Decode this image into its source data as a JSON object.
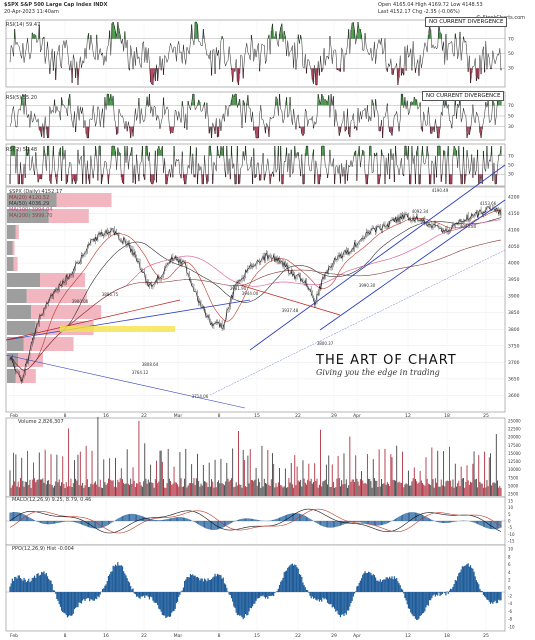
{
  "header": {
    "symbol": "$SPX",
    "name": "S&P 500 Large Cap Index",
    "exchange": "INDX",
    "date_line": "20-Apr-2023 11:40am",
    "open": "Open 4165.04",
    "high": "High 4169.72",
    "low": "Low 4148.53",
    "last": "Last 4152.17",
    "chg": "Chg -2.35 (-0.06%)",
    "source": "© StockCharts.com"
  },
  "annotations": {
    "rsi1_note": "NO CURRENT DIVERGENCE",
    "rsi2_note": "NO CURRENT DIVERGENCE"
  },
  "panels": {
    "rsi1_label": "RSI(14) 59.47",
    "rsi2_label": "RSI(5) 55.20",
    "rsi3_label": "RSI(2) 59.48",
    "price_label": "$SPX (Daily) 4152.17",
    "ma_labels": [
      "MA(20) 4120.52",
      "MA(50) 4036.29",
      "MA(100) 3994.04",
      "MA(200) 3999.70"
    ],
    "volume_label": "Volume 2,826,307",
    "macd_label": "MACD(12,26,9) 9.25, 8.79, 0.46",
    "ppo_label": "PPO(12,26,9) Hist -0.004"
  },
  "brand": {
    "title": "THE ART OF CHART",
    "tagline": "Giving you the edge in trading"
  },
  "x_axis": {
    "labels": [
      "Feb",
      "8",
      "16",
      "22",
      "Mar",
      "8",
      "15",
      "22",
      "29",
      "Apr",
      "12",
      "18",
      "25"
    ]
  },
  "chart_data": {
    "type": "line",
    "price_y_ticks": [
      "4200",
      "4150",
      "4100",
      "4050",
      "4000",
      "3950",
      "3900",
      "3850",
      "3800",
      "3750",
      "3700",
      "3650",
      "3600"
    ],
    "price_levels": [
      "4190.49",
      "4153.66",
      "4092.34",
      "4046.80",
      "3990.30",
      "3944.00",
      "3981.90",
      "3900.00",
      "3886.75",
      "3808.64",
      "3764.12",
      "3714.06",
      "3800.37",
      "3937.48"
    ],
    "volume_y_ticks": [
      "25000",
      "22500",
      "20000",
      "17500",
      "15000",
      "12500",
      "10000",
      "7500",
      "5000",
      "2500"
    ],
    "macd_y_ticks": [
      "15",
      "10",
      "5",
      "0",
      "-5",
      "-10",
      "-15"
    ],
    "ppo_y_ticks": [
      "10",
      "8",
      "6",
      "4",
      "2",
      "0",
      "-2",
      "-4",
      "-6",
      "-8",
      "-10"
    ],
    "rsi_y_ticks": [
      "70",
      "50",
      "30"
    ]
  }
}
